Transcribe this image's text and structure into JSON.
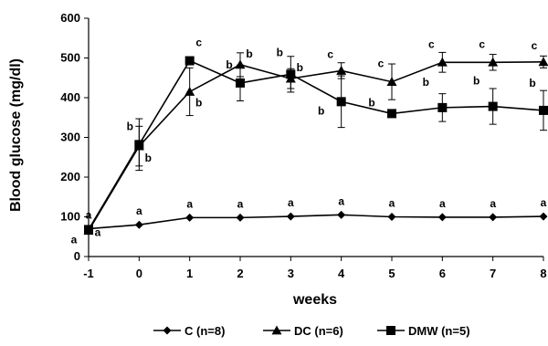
{
  "chart_data": {
    "type": "line",
    "xlabel": "weeks",
    "ylabel": "Blood glucose (mg/dl)",
    "x": [
      -1,
      0,
      1,
      2,
      3,
      4,
      5,
      6,
      7,
      8
    ],
    "xlim": [
      -1,
      8
    ],
    "ylim": [
      0,
      600
    ],
    "x_ticks": [
      "-1",
      "0",
      "1",
      "2",
      "3",
      "4",
      "5",
      "6",
      "7",
      "8"
    ],
    "y_ticks": [
      "0",
      "100",
      "200",
      "300",
      "400",
      "500",
      "600"
    ],
    "grid": false,
    "legend_position": "bottom",
    "series": [
      {
        "name": "C (n=8)",
        "marker": "diamond",
        "values": [
          70,
          80,
          98,
          98,
          101,
          105,
          100,
          99,
          99,
          101
        ],
        "error": [
          0,
          0,
          0,
          0,
          0,
          0,
          0,
          0,
          0,
          0
        ],
        "labels": [
          "a",
          "a",
          "a",
          "a",
          "a",
          "a",
          "a",
          "a",
          "a",
          "a"
        ]
      },
      {
        "name": "DC (n=6)",
        "marker": "triangle",
        "values": [
          65,
          278,
          415,
          483,
          448,
          468,
          440,
          489,
          489,
          490
        ],
        "error": [
          0,
          50,
          60,
          30,
          25,
          20,
          45,
          25,
          20,
          15
        ],
        "labels": [
          "a",
          "b",
          "b",
          "b",
          "b",
          "c",
          "c",
          "c",
          "c",
          "c"
        ]
      },
      {
        "name": "DMW (n=5)",
        "marker": "square",
        "values": [
          68,
          282,
          493,
          437,
          459,
          390,
          360,
          375,
          378,
          368
        ],
        "error": [
          0,
          65,
          0,
          45,
          45,
          65,
          0,
          35,
          45,
          50
        ],
        "labels": [
          "a",
          "b",
          "c",
          "b",
          "b",
          "b",
          "b",
          "b",
          "b",
          "b"
        ]
      }
    ]
  }
}
